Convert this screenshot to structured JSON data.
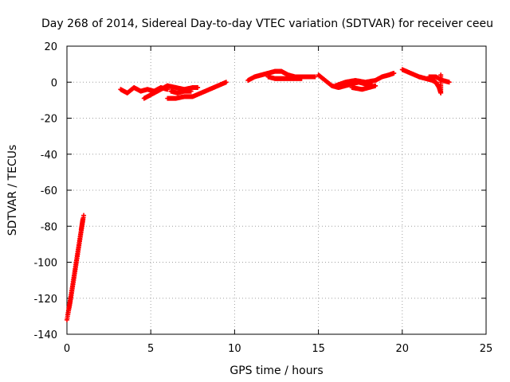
{
  "chart_data": {
    "type": "scatter",
    "title": "Day 268 of 2014, Sidereal Day-to-day VTEC variation (SDTVAR) for receiver ceeu",
    "xlabel": "GPS time / hours",
    "ylabel": "SDTVAR / TECUs",
    "xlim": [
      0,
      25
    ],
    "ylim": [
      -140,
      20
    ],
    "xticks": [
      0,
      5,
      10,
      15,
      20,
      25
    ],
    "yticks": [
      20,
      0,
      -20,
      -40,
      -60,
      -80,
      -100,
      -120,
      -140
    ],
    "grid": true,
    "marker": "plus",
    "color": "#ff0000",
    "series": [
      {
        "name": "SDTVAR",
        "segments": [
          [
            [
              0.0,
              -132
            ],
            [
              0.2,
              -122
            ],
            [
              0.4,
              -110
            ],
            [
              0.6,
              -98
            ],
            [
              0.8,
              -86
            ],
            [
              1.0,
              -74
            ]
          ],
          [
            [
              0.05,
              -129
            ],
            [
              0.25,
              -118
            ],
            [
              0.45,
              -106
            ],
            [
              0.65,
              -94
            ],
            [
              0.85,
              -82
            ],
            [
              0.95,
              -76
            ]
          ],
          [
            [
              3.2,
              -4
            ],
            [
              3.6,
              -6
            ],
            [
              4.0,
              -3
            ],
            [
              4.4,
              -5
            ],
            [
              4.8,
              -4
            ],
            [
              5.2,
              -5
            ],
            [
              5.6,
              -3
            ],
            [
              6.0,
              -4
            ]
          ],
          [
            [
              4.6,
              -9
            ],
            [
              5.0,
              -7
            ],
            [
              5.4,
              -5
            ],
            [
              5.8,
              -3
            ],
            [
              6.0,
              -2
            ]
          ],
          [
            [
              6.0,
              -2
            ],
            [
              6.5,
              -3
            ],
            [
              7.0,
              -4
            ],
            [
              7.5,
              -3
            ],
            [
              7.8,
              -3
            ]
          ],
          [
            [
              6.0,
              -9
            ],
            [
              6.5,
              -9
            ],
            [
              7.0,
              -8
            ],
            [
              7.5,
              -8
            ],
            [
              8.0,
              -6
            ],
            [
              8.5,
              -4
            ],
            [
              9.0,
              -2
            ],
            [
              9.5,
              0
            ]
          ],
          [
            [
              6.2,
              -5
            ],
            [
              6.6,
              -6
            ],
            [
              7.0,
              -5
            ],
            [
              7.4,
              -5
            ]
          ],
          [
            [
              10.8,
              1
            ],
            [
              11.2,
              3
            ],
            [
              11.6,
              4
            ],
            [
              12.0,
              5
            ],
            [
              12.4,
              6
            ],
            [
              12.8,
              6
            ],
            [
              13.2,
              4
            ],
            [
              13.6,
              3
            ],
            [
              14.0,
              3
            ],
            [
              14.4,
              3
            ],
            [
              14.8,
              3
            ]
          ],
          [
            [
              12.0,
              3
            ],
            [
              12.4,
              2
            ],
            [
              12.8,
              2
            ],
            [
              13.2,
              2
            ],
            [
              13.6,
              2
            ],
            [
              14.0,
              2
            ]
          ],
          [
            [
              15.0,
              4
            ],
            [
              15.4,
              1
            ],
            [
              15.8,
              -2
            ],
            [
              16.2,
              -3
            ],
            [
              16.6,
              -2
            ],
            [
              17.0,
              -1
            ],
            [
              17.4,
              0
            ],
            [
              17.8,
              -1
            ],
            [
              18.2,
              0
            ]
          ],
          [
            [
              16.0,
              -2
            ],
            [
              16.6,
              0
            ],
            [
              17.2,
              1
            ],
            [
              17.8,
              0
            ],
            [
              18.4,
              1
            ],
            [
              18.8,
              3
            ],
            [
              19.2,
              4
            ],
            [
              19.5,
              5
            ]
          ],
          [
            [
              17.0,
              -3
            ],
            [
              17.6,
              -4
            ],
            [
              18.0,
              -3
            ],
            [
              18.4,
              -2
            ]
          ],
          [
            [
              20.0,
              7
            ],
            [
              20.5,
              5
            ],
            [
              21.0,
              3
            ],
            [
              21.4,
              2
            ],
            [
              21.8,
              1
            ],
            [
              22.0,
              0
            ],
            [
              22.2,
              -3
            ],
            [
              22.3,
              -6
            ],
            [
              22.3,
              4
            ]
          ],
          [
            [
              21.6,
              3
            ],
            [
              22.0,
              3
            ],
            [
              22.4,
              1
            ],
            [
              22.8,
              0
            ]
          ]
        ]
      }
    ]
  }
}
